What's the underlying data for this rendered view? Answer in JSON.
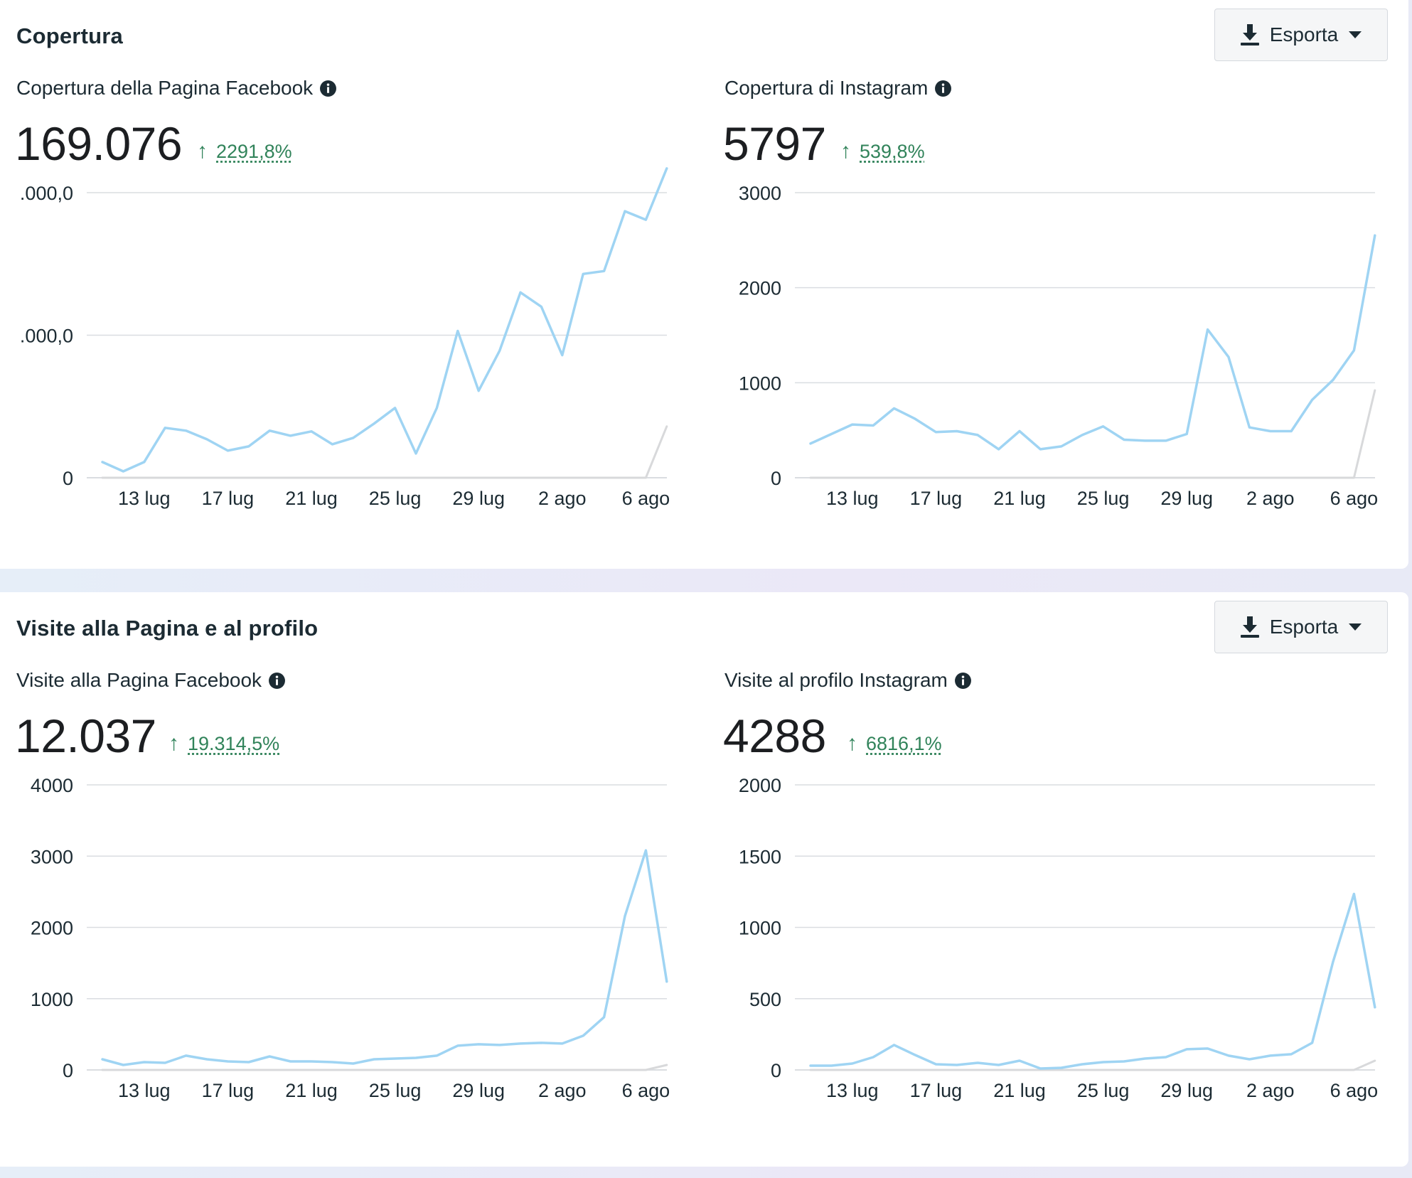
{
  "colors": {
    "series_current": "#9fd4f3",
    "series_previous": "#d8d9db",
    "grid": "#dadde1",
    "positive": "#31835a"
  },
  "icons": {
    "export": "download-icon",
    "dropdown": "caret-down-icon",
    "info": "info-icon",
    "change": "arrow-up-icon"
  },
  "sections": [
    {
      "title": "Copertura",
      "export_label": "Esporta",
      "panels": [
        {
          "label": "Copertura della Pagina Facebook",
          "value": "169.076",
          "change": "2291,8%"
        },
        {
          "label": "Copertura di Instagram",
          "value": "5797",
          "change": "539,8%"
        }
      ]
    },
    {
      "title": "Visite alla Pagina e al profilo",
      "export_label": "Esporta",
      "panels": [
        {
          "label": "Visite alla Pagina Facebook",
          "value": "12.037",
          "change": "19.314,5%"
        },
        {
          "label": "Visite al profilo Instagram",
          "value": "4288",
          "change": "6816,1%"
        }
      ]
    }
  ],
  "chart_data": [
    {
      "type": "line",
      "ylim": [
        0,
        20000
      ],
      "yticks": [
        0,
        10000,
        20000
      ],
      "ytick_labels": [
        "0",
        ".000,0",
        ".000,0"
      ],
      "x_tick_labels": [
        "13 lug",
        "17 lug",
        "21 lug",
        "25 lug",
        "29 lug",
        "2 ago",
        "6 ago"
      ],
      "x_tick_indices": [
        2,
        6,
        10,
        14,
        18,
        22,
        26
      ],
      "series": [
        {
          "values": [
            1100,
            450,
            1100,
            3500,
            3300,
            2700,
            1900,
            2200,
            3300,
            2950,
            3250,
            2350,
            2800,
            3800,
            4900,
            1700,
            4900,
            10300,
            6100,
            8900,
            13000,
            12000,
            8600,
            14300,
            14500,
            18700,
            18100,
            21700
          ]
        },
        {
          "values": [
            0,
            0,
            0,
            0,
            0,
            0,
            0,
            0,
            0,
            0,
            0,
            0,
            0,
            0,
            0,
            0,
            0,
            0,
            0,
            0,
            0,
            0,
            0,
            0,
            0,
            0,
            0,
            3600
          ]
        }
      ]
    },
    {
      "type": "line",
      "ylim": [
        0,
        3000
      ],
      "yticks": [
        0,
        1000,
        2000,
        3000
      ],
      "ytick_labels": [
        "0",
        "1000",
        "2000",
        "3000"
      ],
      "x_tick_labels": [
        "13 lug",
        "17 lug",
        "21 lug",
        "25 lug",
        "29 lug",
        "2 ago",
        "6 ago"
      ],
      "x_tick_indices": [
        2,
        6,
        10,
        14,
        18,
        22,
        26
      ],
      "series": [
        {
          "values": [
            360,
            460,
            560,
            550,
            730,
            620,
            480,
            490,
            450,
            300,
            490,
            300,
            330,
            450,
            540,
            400,
            390,
            390,
            460,
            1560,
            1270,
            530,
            490,
            490,
            820,
            1030,
            1340,
            2550
          ]
        },
        {
          "values": [
            0,
            0,
            0,
            0,
            0,
            0,
            0,
            0,
            0,
            0,
            0,
            0,
            0,
            0,
            0,
            0,
            0,
            0,
            0,
            0,
            0,
            0,
            0,
            0,
            0,
            0,
            0,
            920
          ]
        }
      ]
    },
    {
      "type": "line",
      "ylim": [
        0,
        4000
      ],
      "yticks": [
        0,
        1000,
        2000,
        3000,
        4000
      ],
      "ytick_labels": [
        "0",
        "1000",
        "2000",
        "3000",
        "4000"
      ],
      "x_tick_labels": [
        "13 lug",
        "17 lug",
        "21 lug",
        "25 lug",
        "29 lug",
        "2 ago",
        "6 ago"
      ],
      "x_tick_indices": [
        2,
        6,
        10,
        14,
        18,
        22,
        26
      ],
      "series": [
        {
          "values": [
            150,
            70,
            110,
            100,
            200,
            150,
            120,
            110,
            190,
            120,
            120,
            110,
            90,
            150,
            160,
            170,
            200,
            340,
            360,
            350,
            370,
            380,
            370,
            480,
            740,
            2160,
            3080,
            1240
          ]
        },
        {
          "values": [
            0,
            0,
            0,
            0,
            0,
            0,
            0,
            0,
            0,
            0,
            0,
            0,
            0,
            0,
            0,
            0,
            0,
            0,
            0,
            0,
            0,
            0,
            0,
            0,
            0,
            0,
            0,
            70
          ]
        }
      ]
    },
    {
      "type": "line",
      "ylim": [
        0,
        2000
      ],
      "yticks": [
        0,
        500,
        1000,
        1500,
        2000
      ],
      "ytick_labels": [
        "0",
        "500",
        "1000",
        "1500",
        "2000"
      ],
      "x_tick_labels": [
        "13 lug",
        "17 lug",
        "21 lug",
        "25 lug",
        "29 lug",
        "2 ago",
        "6 ago"
      ],
      "x_tick_indices": [
        2,
        6,
        10,
        14,
        18,
        22,
        26
      ],
      "series": [
        {
          "values": [
            30,
            30,
            45,
            90,
            175,
            105,
            40,
            35,
            50,
            35,
            65,
            10,
            15,
            40,
            55,
            60,
            80,
            90,
            145,
            150,
            100,
            75,
            100,
            110,
            190,
            760,
            1235,
            440
          ]
        },
        {
          "values": [
            0,
            0,
            0,
            0,
            0,
            0,
            0,
            0,
            0,
            0,
            0,
            0,
            0,
            0,
            0,
            0,
            0,
            0,
            0,
            0,
            0,
            0,
            0,
            0,
            0,
            0,
            0,
            65
          ]
        }
      ]
    }
  ]
}
